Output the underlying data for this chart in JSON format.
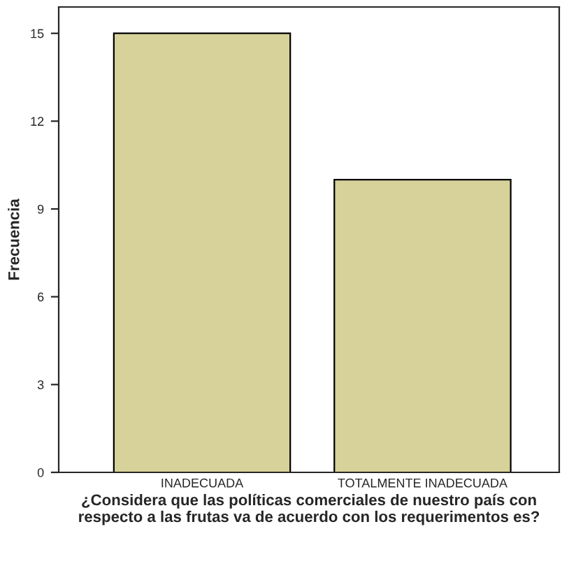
{
  "chart_data": {
    "type": "bar",
    "xlabel": "¿Considera que las políticas comerciales de nuestro país con respecto a las frutas va de acuerdo con los requerimentos es?",
    "ylabel": "Frecuencia",
    "categories": [
      "INADECUADA",
      "TOTALMENTE INADECUADA"
    ],
    "values": [
      15,
      10
    ],
    "color": "#d6d29a",
    "ylim": [
      0,
      15.9
    ],
    "yticks": [
      0,
      3,
      6,
      9,
      12,
      15
    ],
    "grid": false,
    "legend": false
  }
}
